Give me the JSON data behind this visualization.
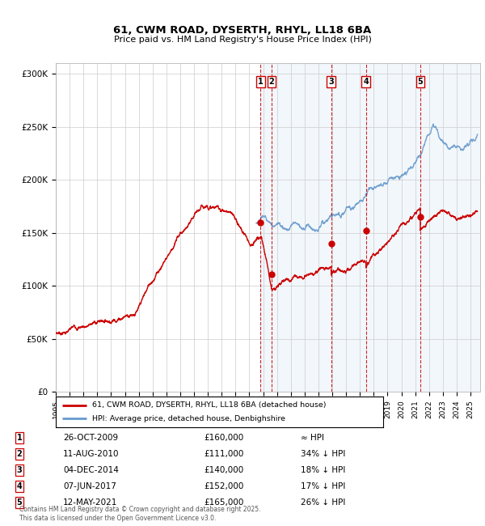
{
  "title_line1": "61, CWM ROAD, DYSERTH, RHYL, LL18 6BA",
  "title_line2": "Price paid vs. HM Land Registry's House Price Index (HPI)",
  "ytick_labels": [
    "£0",
    "£50K",
    "£100K",
    "£150K",
    "£200K",
    "£250K",
    "£300K"
  ],
  "ytick_values": [
    0,
    50000,
    100000,
    150000,
    200000,
    250000,
    300000
  ],
  "ylim": [
    0,
    310000
  ],
  "xlim_start": 1995.0,
  "xlim_end": 2025.7,
  "hpi_color": "#6699cc",
  "price_color": "#cc0000",
  "sale_marker_color": "#cc0000",
  "plot_bg_color": "#ffffff",
  "grid_color": "#cccccc",
  "sale_events": [
    {
      "num": 1,
      "date_str": "26-OCT-2009",
      "date_x": 2009.82,
      "price": 160000,
      "label": "≈ HPI"
    },
    {
      "num": 2,
      "date_str": "11-AUG-2010",
      "date_x": 2010.62,
      "price": 111000,
      "label": "34% ↓ HPI"
    },
    {
      "num": 3,
      "date_str": "04-DEC-2014",
      "date_x": 2014.92,
      "price": 140000,
      "label": "18% ↓ HPI"
    },
    {
      "num": 4,
      "date_str": "07-JUN-2017",
      "date_x": 2017.44,
      "price": 152000,
      "label": "17% ↓ HPI"
    },
    {
      "num": 5,
      "date_str": "12-MAY-2021",
      "date_x": 2021.37,
      "price": 165000,
      "label": "26% ↓ HPI"
    }
  ],
  "legend_house": "61, CWM ROAD, DYSERTH, RHYL, LL18 6BA (detached house)",
  "legend_hpi": "HPI: Average price, detached house, Denbighshire",
  "footer": "Contains HM Land Registry data © Crown copyright and database right 2025.\nThis data is licensed under the Open Government Licence v3.0.",
  "hpi_bg_start": 2009.82
}
